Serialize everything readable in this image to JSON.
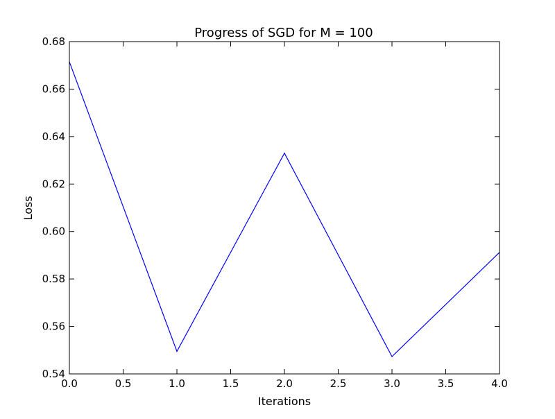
{
  "chart_data": {
    "type": "line",
    "title": "Progress of SGD for M = 100",
    "xlabel": "Iterations",
    "ylabel": "Loss",
    "xlim": [
      0.0,
      4.0
    ],
    "ylim": [
      0.54,
      0.68
    ],
    "x_ticks": [
      0.0,
      0.5,
      1.0,
      1.5,
      2.0,
      2.5,
      3.0,
      3.5,
      4.0
    ],
    "x_tick_labels": [
      "0.0",
      "0.5",
      "1.0",
      "1.5",
      "2.0",
      "2.5",
      "3.0",
      "3.5",
      "4.0"
    ],
    "y_ticks": [
      0.54,
      0.56,
      0.58,
      0.6,
      0.62,
      0.64,
      0.66,
      0.68
    ],
    "y_tick_labels": [
      "0.54",
      "0.56",
      "0.58",
      "0.60",
      "0.62",
      "0.64",
      "0.66",
      "0.68"
    ],
    "grid": false,
    "series": [
      {
        "x": [
          0,
          1,
          2,
          3,
          4
        ],
        "y": [
          0.6715,
          0.5495,
          0.633,
          0.5473,
          0.5912
        ],
        "color": "#0000ff"
      }
    ]
  }
}
